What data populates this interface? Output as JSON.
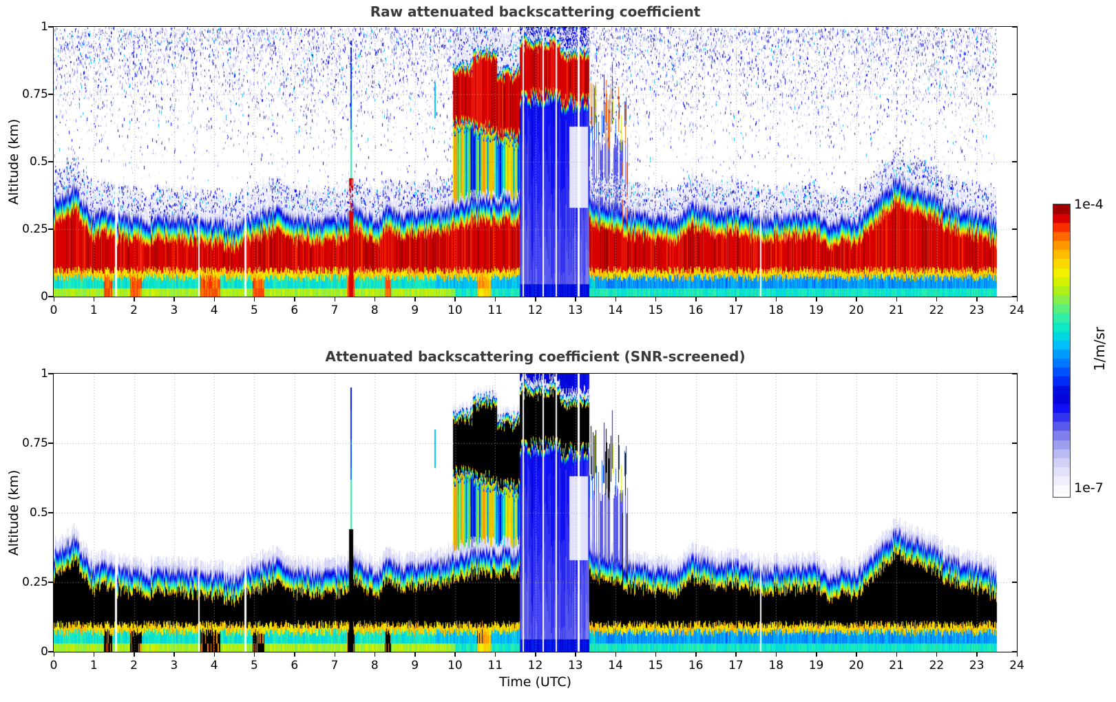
{
  "chart_data": {
    "type": "heatmap",
    "panels": [
      {
        "title": "Raw attenuated backscattering coefficient",
        "noise_speckle": true,
        "saturate_black": false,
        "fringe_km": 0.016
      },
      {
        "title": "Attenuated backscattering coefficient (SNR-screened)",
        "noise_speckle": false,
        "saturate_black": true,
        "black_threshold_frac": 0.878,
        "fringe_km": 0.034
      }
    ],
    "x": {
      "label": "Time (UTC)",
      "range": [
        0,
        24
      ],
      "ticks": [
        0,
        1,
        2,
        3,
        4,
        5,
        6,
        7,
        8,
        9,
        10,
        11,
        12,
        13,
        14,
        15,
        16,
        17,
        18,
        19,
        20,
        21,
        22,
        23,
        24
      ],
      "data_end_hour": 23.5,
      "units": "hours"
    },
    "y": {
      "label": "Altitude (km)",
      "range": [
        0,
        1
      ],
      "ticks": [
        0,
        0.25,
        0.5,
        0.75,
        1
      ],
      "tick_labels": [
        "0",
        "0.25",
        "0.5",
        "0.75",
        "1"
      ]
    },
    "colorbar": {
      "top_label": "1e-4",
      "bottom_label": "1e-7",
      "units_label": "1/m/sr",
      "scale": "log10",
      "value_min": 1e-07,
      "value_max": 0.0001,
      "n_levels": 32,
      "stops": [
        [
          0.0,
          "#ffffff"
        ],
        [
          0.05,
          "#eeeefc"
        ],
        [
          0.1,
          "#d8d8f8"
        ],
        [
          0.15,
          "#b4b4f2"
        ],
        [
          0.2,
          "#8484ec"
        ],
        [
          0.25,
          "#4444ee"
        ],
        [
          0.3,
          "#0d0df2"
        ],
        [
          0.345,
          "#0000cd"
        ],
        [
          0.4,
          "#0033ff"
        ],
        [
          0.46,
          "#0080ff"
        ],
        [
          0.52,
          "#00c4f8"
        ],
        [
          0.565,
          "#00e6d2"
        ],
        [
          0.62,
          "#3cf09e"
        ],
        [
          0.67,
          "#84ee4e"
        ],
        [
          0.72,
          "#c4f000"
        ],
        [
          0.77,
          "#f4f000"
        ],
        [
          0.82,
          "#ffc400"
        ],
        [
          0.87,
          "#ff8c00"
        ],
        [
          0.91,
          "#ff4400"
        ],
        [
          0.945,
          "#e60000"
        ],
        [
          0.975,
          "#b40000"
        ],
        [
          1.0,
          "#800000"
        ]
      ]
    },
    "boundary_layer": {
      "hours": [
        0,
        0.5,
        1,
        1.5,
        2,
        2.5,
        3,
        3.5,
        4,
        4.5,
        5,
        5.5,
        6,
        6.5,
        7,
        7.5,
        8,
        8.5,
        9,
        9.5,
        10,
        10.5,
        11,
        11.5,
        12,
        12.5,
        13,
        13.5,
        14,
        14.5,
        15,
        15.5,
        16,
        16.5,
        17,
        17.5,
        18,
        18.5,
        19,
        19.5,
        20,
        20.5,
        21,
        21.5,
        22,
        22.5,
        23,
        23.5
      ],
      "top_km": [
        0.36,
        0.41,
        0.3,
        0.3,
        0.28,
        0.3,
        0.28,
        0.28,
        0.27,
        0.27,
        0.31,
        0.33,
        0.29,
        0.29,
        0.28,
        0.33,
        0.3,
        0.32,
        0.29,
        0.32,
        0.35,
        0.36,
        0.36,
        0.36,
        0.36,
        0.36,
        0.36,
        0.35,
        0.34,
        0.3,
        0.29,
        0.3,
        0.34,
        0.32,
        0.31,
        0.3,
        0.31,
        0.3,
        0.3,
        0.29,
        0.3,
        0.36,
        0.44,
        0.4,
        0.36,
        0.33,
        0.31,
        0.29
      ],
      "core_base_km": 0.07
    },
    "clouds": [
      {
        "t0": 9.95,
        "t1": 10.45,
        "base_km": 0.62,
        "top_km": 0.88
      },
      {
        "t0": 10.45,
        "t1": 11.05,
        "base_km": 0.6,
        "top_km": 0.93
      },
      {
        "t0": 11.05,
        "t1": 11.62,
        "base_km": 0.57,
        "top_km": 0.86
      },
      {
        "t0": 11.62,
        "t1": 12.62,
        "base_km": 0.72,
        "top_km": 0.97
      },
      {
        "t0": 12.62,
        "t1": 13.35,
        "base_km": 0.7,
        "top_km": 0.93
      }
    ],
    "precip_zone": {
      "t0": 9.95,
      "t1": 11.62
    },
    "attenuation_zone": {
      "t0": 11.62,
      "t1": 13.35
    },
    "clear_pocket": {
      "t": [
        12.85,
        13.32
      ],
      "z": [
        0.33,
        0.63
      ]
    },
    "cloud_fragments": {
      "t0": 13.35,
      "t1": 14.3,
      "zmin": 0.55,
      "zmax": 0.87
    },
    "spikes": [
      {
        "t": 7.41,
        "core_top_km": 0.44,
        "plume_top_km": 0.95
      },
      {
        "t": 9.5,
        "z0": 0.66,
        "z1": 0.8
      }
    ],
    "surface_plumes": [
      [
        1.25,
        1.45
      ],
      [
        1.9,
        2.2
      ],
      [
        3.65,
        4.15
      ],
      [
        4.95,
        5.25
      ],
      [
        7.3,
        7.5
      ],
      [
        8.25,
        8.4
      ],
      [
        10.55,
        10.9
      ]
    ],
    "gaps_hours": [
      1.55,
      3.62,
      4.78,
      11.7,
      12.2,
      12.52,
      13.08,
      17.62
    ],
    "grid": {
      "vertical_every_hour": true,
      "horizontal_at": [
        0.25,
        0.5,
        0.75
      ],
      "style": "dotted-gray"
    },
    "seed": 7
  }
}
